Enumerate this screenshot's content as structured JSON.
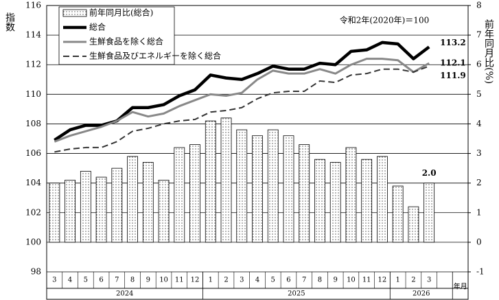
{
  "chart_data": {
    "type": "combo",
    "annotation": "令和2年(2020年)＝100",
    "ylabel": "指数",
    "y2label": "前年同月比(%)",
    "xlabel": "年月",
    "category_groups": [
      {
        "label": "2024",
        "categories": [
          "3",
          "4",
          "5",
          "6",
          "7",
          "8",
          "9",
          "10",
          "11",
          "12"
        ]
      },
      {
        "label": "2025",
        "categories": [
          "1",
          "2",
          "3",
          "4",
          "5",
          "6",
          "7",
          "8",
          "9",
          "10",
          "11",
          "12"
        ]
      },
      {
        "label": "2026",
        "categories": [
          "1",
          "2",
          "3"
        ]
      }
    ],
    "ylim": [
      98,
      116
    ],
    "yticks": [
      98,
      100,
      102,
      104,
      106,
      108,
      110,
      112,
      114,
      116
    ],
    "y2lim": [
      -1,
      8
    ],
    "y2ticks": [
      -1,
      0,
      1,
      2,
      3,
      4,
      5,
      6,
      7,
      8
    ],
    "grid": true,
    "series": [
      {
        "name": "前年同月比(総合)",
        "kind": "bar",
        "axis": "y2",
        "color": "#ffffff",
        "values": [
          2.0,
          2.1,
          2.4,
          2.2,
          2.5,
          2.9,
          2.7,
          2.1,
          3.2,
          3.3,
          4.1,
          4.2,
          3.8,
          3.6,
          3.8,
          3.6,
          3.3,
          2.8,
          2.7,
          3.2,
          2.8,
          2.9,
          1.9,
          1.2,
          2.0
        ],
        "value_labels": [
          null,
          null,
          null,
          null,
          null,
          null,
          null,
          null,
          null,
          null,
          null,
          null,
          null,
          null,
          null,
          null,
          null,
          null,
          null,
          null,
          null,
          null,
          null,
          null,
          "2.0"
        ]
      },
      {
        "name": "総合",
        "kind": "line",
        "color": "#000000",
        "style": "solid",
        "values": [
          106.9,
          107.6,
          107.9,
          107.9,
          108.2,
          109.1,
          109.1,
          109.3,
          109.9,
          110.3,
          111.3,
          111.1,
          111.0,
          111.4,
          111.9,
          111.7,
          111.7,
          112.1,
          112.0,
          112.9,
          113.0,
          113.5,
          113.4,
          112.4,
          113.2
        ]
      },
      {
        "name": "生鮮食品を除く総合",
        "kind": "line",
        "color": "#888888",
        "style": "solid",
        "values": [
          106.8,
          107.2,
          107.5,
          107.8,
          108.2,
          108.8,
          108.5,
          108.7,
          109.2,
          109.6,
          110.0,
          109.9,
          110.1,
          111.0,
          111.6,
          111.4,
          111.4,
          111.7,
          111.4,
          112.0,
          112.4,
          112.4,
          112.3,
          111.5,
          112.1
        ]
      },
      {
        "name": "生鮮食品及びエネルギーを除く総合",
        "kind": "line",
        "color": "#333333",
        "style": "dashed",
        "values": [
          106.1,
          106.3,
          106.4,
          106.4,
          106.8,
          107.5,
          107.7,
          108.0,
          108.2,
          108.3,
          108.8,
          108.9,
          109.1,
          109.7,
          110.1,
          110.2,
          110.2,
          110.9,
          110.8,
          111.3,
          111.4,
          111.7,
          111.7,
          111.5,
          111.9
        ]
      }
    ]
  }
}
